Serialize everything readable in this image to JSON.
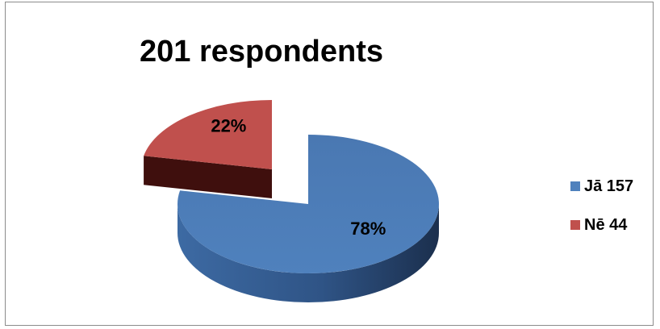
{
  "chart_data": {
    "type": "pie",
    "title": "201 respondents",
    "slices": [
      {
        "label": "Jā 157",
        "value": 157,
        "percent_label": "78%",
        "color": "#4f81bd"
      },
      {
        "label": "Nē 44",
        "value": 44,
        "percent_label": "22%",
        "color": "#c0504d"
      }
    ],
    "legend_position": "right",
    "style": "3d-exploded"
  }
}
